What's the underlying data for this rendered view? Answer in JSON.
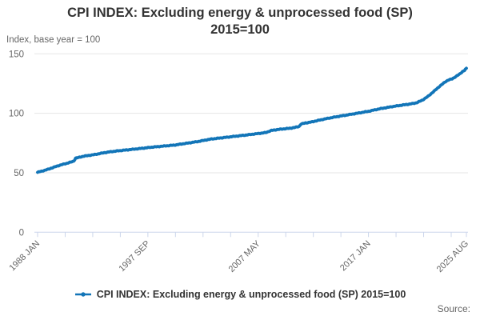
{
  "title": {
    "line1": "CPI INDEX: Excluding energy & unprocessed food (SP)",
    "line2": "2015=100"
  },
  "y_axis_title": "Index, base year = 100",
  "legend": {
    "label": "CPI INDEX: Excluding energy & unprocessed food (SP) 2015=100"
  },
  "source_label": "Source:",
  "colors": {
    "line": "#1275b8",
    "grid": "#e6e6e6",
    "axis": "#ccd6eb",
    "tick_label": "#666666",
    "title_text": "#333333"
  },
  "chart_data": {
    "type": "line",
    "title": "CPI INDEX: Excluding energy & unprocessed food (SP) 2015=100",
    "xlabel": "",
    "ylabel": "Index, base year = 100",
    "ylim": [
      0,
      150
    ],
    "y_ticks": [
      0,
      50,
      100,
      150
    ],
    "grid": "horizontal",
    "legend_position": "bottom",
    "x_start": "1988-01",
    "x_end": "2025-08",
    "minor_tick_interval_months": 29,
    "x_tick_labels": [
      {
        "date": "1988-01",
        "label": "1988 JAN"
      },
      {
        "date": "1997-09",
        "label": "1997 SEP"
      },
      {
        "date": "2007-05",
        "label": "2007 MAY"
      },
      {
        "date": "2017-01",
        "label": "2017 JAN"
      },
      {
        "date": "2025-08",
        "label": "2025 AUG"
      }
    ],
    "series": [
      {
        "name": "CPI INDEX: Excluding energy & unprocessed food (SP) 2015=100",
        "color": "#1275b8",
        "points": [
          {
            "date": "1988-01",
            "value": 50.4
          },
          {
            "date": "1988-07",
            "value": 51.7
          },
          {
            "date": "1989-01",
            "value": 53.2
          },
          {
            "date": "1989-07",
            "value": 54.9
          },
          {
            "date": "1990-01",
            "value": 56.5
          },
          {
            "date": "1990-07",
            "value": 57.8
          },
          {
            "date": "1991-01",
            "value": 59.2
          },
          {
            "date": "1991-03",
            "value": 59.8
          },
          {
            "date": "1991-05",
            "value": 62.3
          },
          {
            "date": "1991-09",
            "value": 63.0
          },
          {
            "date": "1992-01",
            "value": 63.9
          },
          {
            "date": "1993-01",
            "value": 65.3
          },
          {
            "date": "1993-11",
            "value": 66.9
          },
          {
            "date": "1994-07",
            "value": 67.8
          },
          {
            "date": "1995-07",
            "value": 68.9
          },
          {
            "date": "1996-01",
            "value": 69.4
          },
          {
            "date": "1997-01",
            "value": 70.4
          },
          {
            "date": "1998-01",
            "value": 71.5
          },
          {
            "date": "1999-01",
            "value": 72.4
          },
          {
            "date": "2000-01",
            "value": 73.3
          },
          {
            "date": "2001-01",
            "value": 74.7
          },
          {
            "date": "2002-01",
            "value": 76.2
          },
          {
            "date": "2003-03",
            "value": 78.3
          },
          {
            "date": "2004-05",
            "value": 79.6
          },
          {
            "date": "2005-07",
            "value": 80.9
          },
          {
            "date": "2006-07",
            "value": 82.0
          },
          {
            "date": "2007-07",
            "value": 83.2
          },
          {
            "date": "2008-01",
            "value": 83.8
          },
          {
            "date": "2008-07",
            "value": 85.6
          },
          {
            "date": "2009-01",
            "value": 86.3
          },
          {
            "date": "2009-08",
            "value": 86.9
          },
          {
            "date": "2010-01",
            "value": 87.3
          },
          {
            "date": "2010-07",
            "value": 88.0
          },
          {
            "date": "2010-12",
            "value": 88.9
          },
          {
            "date": "2011-02",
            "value": 91.0
          },
          {
            "date": "2011-07",
            "value": 91.9
          },
          {
            "date": "2012-01",
            "value": 92.7
          },
          {
            "date": "2013-01",
            "value": 94.9
          },
          {
            "date": "2014-01",
            "value": 96.8
          },
          {
            "date": "2015-01",
            "value": 98.4
          },
          {
            "date": "2016-01",
            "value": 100.0
          },
          {
            "date": "2017-01",
            "value": 101.7
          },
          {
            "date": "2018-01",
            "value": 103.8
          },
          {
            "date": "2019-01",
            "value": 105.5
          },
          {
            "date": "2020-01",
            "value": 107.0
          },
          {
            "date": "2020-07",
            "value": 107.6
          },
          {
            "date": "2021-01",
            "value": 108.4
          },
          {
            "date": "2021-04",
            "value": 109.0
          },
          {
            "date": "2021-10",
            "value": 111.2
          },
          {
            "date": "2022-04",
            "value": 114.5
          },
          {
            "date": "2022-10",
            "value": 118.6
          },
          {
            "date": "2023-04",
            "value": 122.8
          },
          {
            "date": "2023-10",
            "value": 126.6
          },
          {
            "date": "2024-01",
            "value": 128.0
          },
          {
            "date": "2024-05",
            "value": 128.9
          },
          {
            "date": "2024-10",
            "value": 131.5
          },
          {
            "date": "2025-01",
            "value": 133.0
          },
          {
            "date": "2025-04",
            "value": 135.2
          },
          {
            "date": "2025-06",
            "value": 136.1
          },
          {
            "date": "2025-08",
            "value": 137.9
          }
        ]
      }
    ]
  }
}
